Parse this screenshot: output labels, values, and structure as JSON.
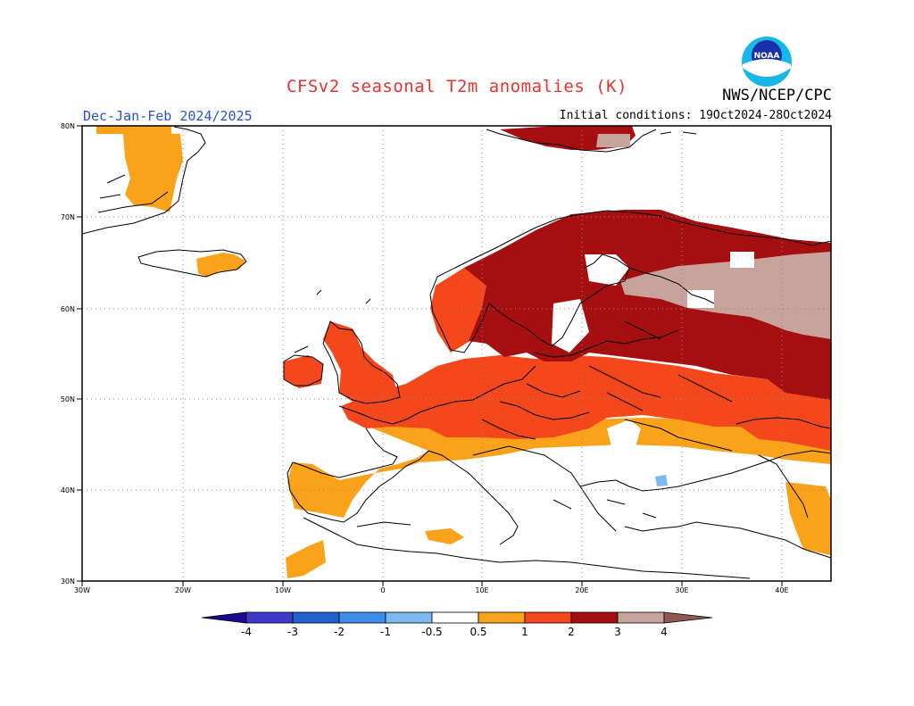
{
  "header": {
    "title": "CFSv2 seasonal T2m anomalies (K)",
    "season": "Dec-Jan-Feb 2024/2025",
    "initial_conditions": "Initial conditions: 19Oct2024-28Oct2024",
    "agency": "NWS/NCEP/CPC",
    "logo_text": "NOAA"
  },
  "map": {
    "region": "Europe",
    "lat_range": [
      30,
      80
    ],
    "lon_range": [
      -30,
      45
    ],
    "lat_labels": [
      "80N",
      "70N",
      "60N",
      "50N",
      "40N",
      "30N"
    ],
    "lon_labels": [
      "30W",
      "20W",
      "10W",
      "0",
      "10E",
      "20E",
      "30E",
      "40E"
    ],
    "grid": true
  },
  "legend": {
    "labels": [
      "-4",
      "-3",
      "-2",
      "-1",
      "-0.5",
      "0.5",
      "1",
      "2",
      "3",
      "4"
    ],
    "colors": {
      "below_-4": "#1b0a8f",
      "-4_-3": "#3e3ac9",
      "-3_-2": "#2160cf",
      "-2_-1": "#3d8ee8",
      "-1_-0.5": "#7db9f0",
      "-0.5_0.5": "#ffffff",
      "0.5_1": "#f9a21a",
      "1_2": "#f4471b",
      "2_3": "#a50f10",
      "3_4": "#c8a39b",
      "above_4": "#8c5a50"
    }
  }
}
